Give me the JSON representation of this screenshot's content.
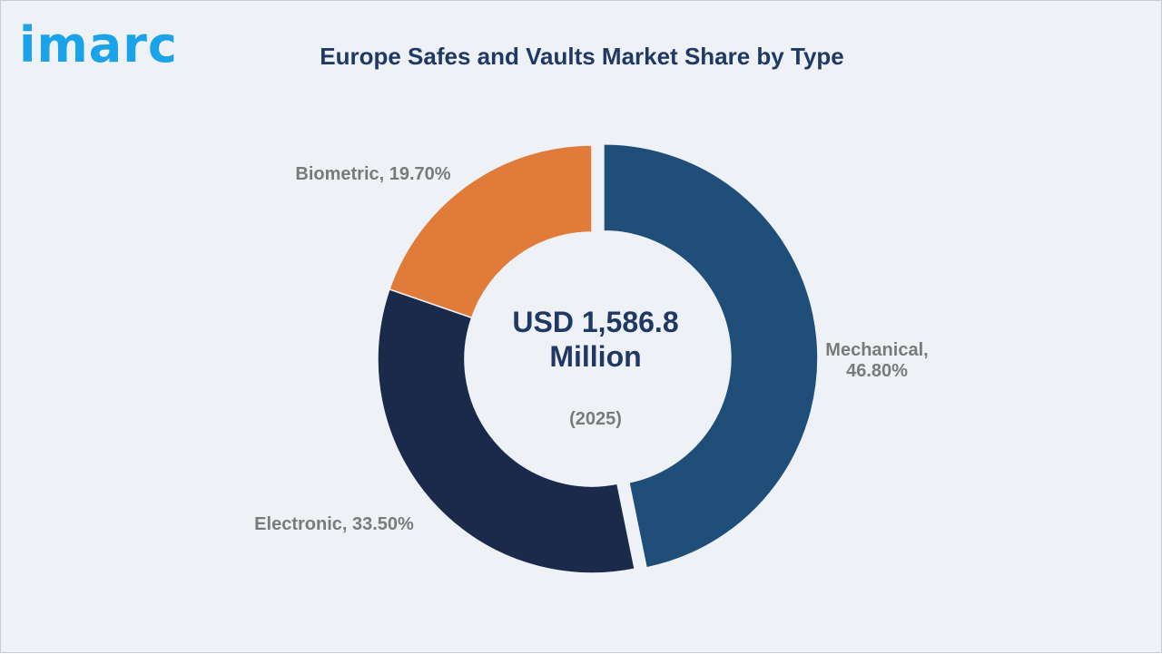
{
  "brand": "imarc",
  "chart_data": {
    "type": "donut",
    "title": "Europe Safes and Vaults Market Share by Type",
    "center_text": "USD 1,586.8 Million",
    "center_subtext": "(2025)",
    "values": [
      46.8,
      33.5,
      19.7
    ],
    "value_labels": [
      "Mechanical, 46.80%",
      "Electronic, 33.50%",
      "Biometric, 19.70%"
    ],
    "colors": [
      "#1f4e79",
      "#1b2a4a",
      "#e07b39"
    ]
  }
}
